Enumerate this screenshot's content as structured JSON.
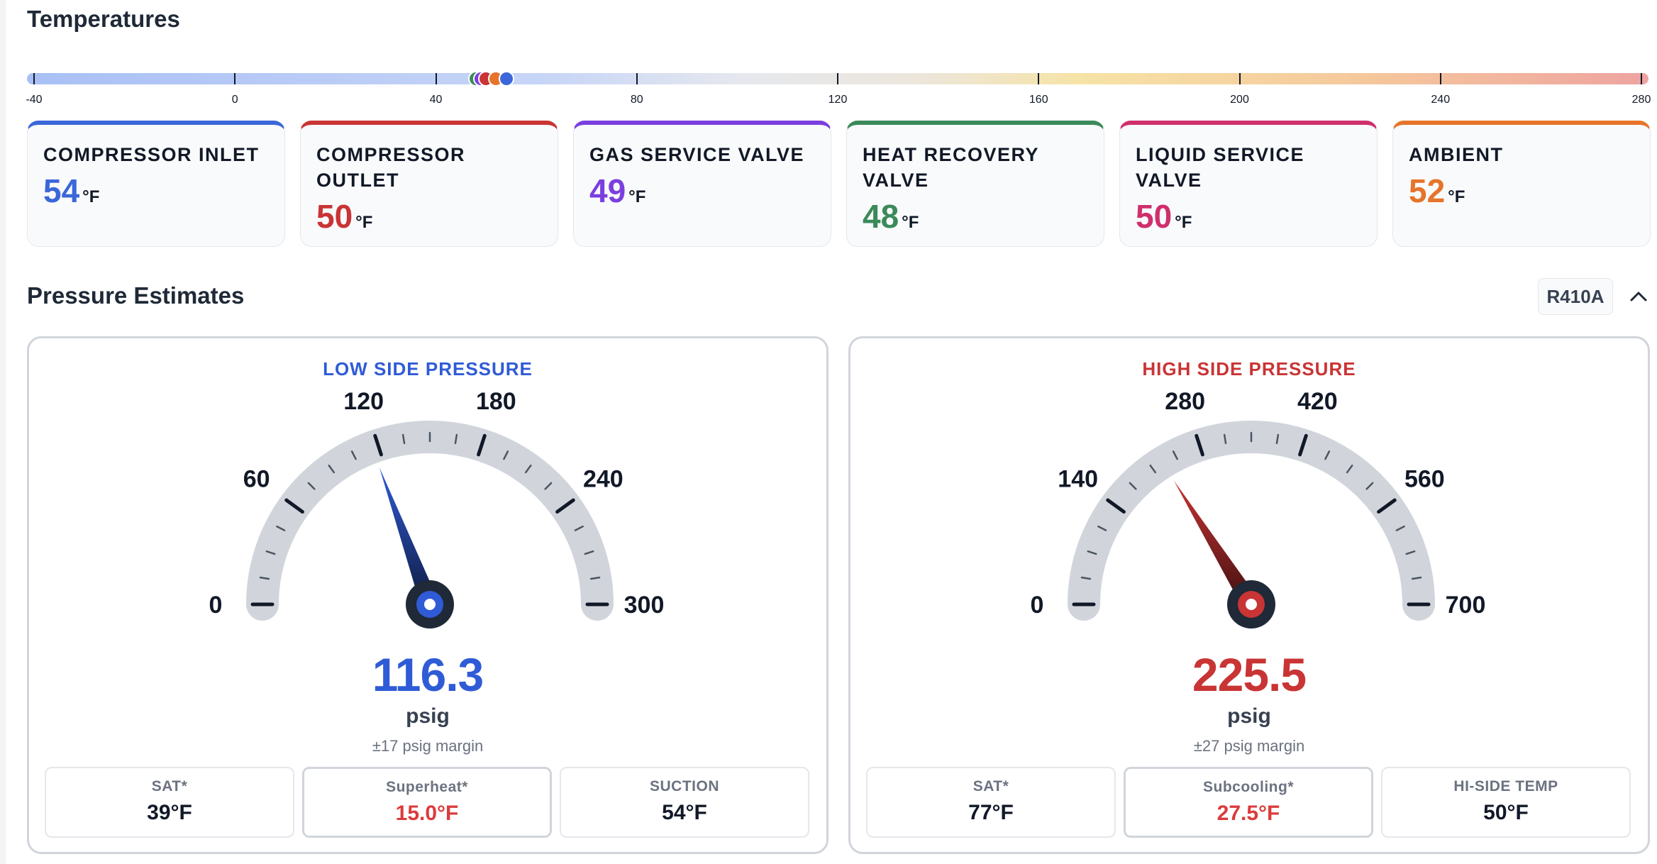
{
  "temperatures": {
    "title": "Temperatures",
    "scale": {
      "min": -40,
      "max": 280,
      "ticks": [
        "-40",
        "0",
        "40",
        "80",
        "120",
        "160",
        "200",
        "240",
        "280"
      ],
      "tick_values": [
        -40,
        0,
        40,
        80,
        120,
        160,
        200,
        240,
        280
      ]
    },
    "sensors": [
      {
        "name": "COMPRESSOR INLET",
        "value": "54",
        "unit": "°F",
        "color": "#3b67d9",
        "temp": 54
      },
      {
        "name": "COMPRESSOR OUTLET",
        "value": "50",
        "unit": "°F",
        "color": "#c93434",
        "temp": 50
      },
      {
        "name": "GAS SERVICE VALVE",
        "value": "49",
        "unit": "°F",
        "color": "#7b3fe0",
        "temp": 49
      },
      {
        "name": "HEAT RECOVERY VALVE",
        "value": "48",
        "unit": "°F",
        "color": "#3a8a5a",
        "temp": 48
      },
      {
        "name": "LIQUID SERVICE VALVE",
        "value": "50",
        "unit": "°F",
        "color": "#cf2f6c",
        "temp": 50
      },
      {
        "name": "AMBIENT",
        "value": "52",
        "unit": "°F",
        "color": "#e6742a",
        "temp": 52
      }
    ]
  },
  "pressure": {
    "title": "Pressure Estimates",
    "refrigerant": "R410A",
    "collapse_icon": "chevron-up-icon",
    "low": {
      "title": "LOW SIDE PRESSURE",
      "color": "#2f5bd6",
      "min": 0,
      "max": 300,
      "labels": [
        "0",
        "60",
        "120",
        "180",
        "240",
        "300"
      ],
      "label_values": [
        0,
        60,
        120,
        180,
        240,
        300
      ],
      "needle": 116.3,
      "reading": "116.3",
      "unit": "psig",
      "margin": "±17 psig margin",
      "stats": [
        {
          "label": "SAT*",
          "value": "39°F"
        },
        {
          "label": "Superheat*",
          "value": "15.0°F"
        },
        {
          "label": "SUCTION",
          "value": "54°F"
        }
      ]
    },
    "high": {
      "title": "HIGH SIDE PRESSURE",
      "color": "#c93434",
      "min": 0,
      "max": 700,
      "labels": [
        "0",
        "140",
        "280",
        "420",
        "560",
        "700"
      ],
      "label_values": [
        0,
        140,
        280,
        420,
        560,
        700
      ],
      "needle": 225.5,
      "reading": "225.5",
      "unit": "psig",
      "margin": "±27 psig margin",
      "stats": [
        {
          "label": "SAT*",
          "value": "77°F"
        },
        {
          "label": "Subcooling*",
          "value": "27.5°F"
        },
        {
          "label": "HI-SIDE TEMP",
          "value": "50°F"
        }
      ]
    }
  }
}
